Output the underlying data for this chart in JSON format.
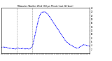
{
  "title": "Milwaukee Weather Wind Chill per Minute (Last 24 Hours)",
  "line_color": "#0000ff",
  "bg_color": "#ffffff",
  "ylim": [
    0,
    24
  ],
  "yticks": [
    2,
    4,
    6,
    8,
    10,
    12,
    14,
    16,
    18,
    20,
    22,
    24
  ],
  "ytick_labels": [
    "2",
    "4",
    "6",
    "8",
    "10",
    "12",
    "14",
    "16",
    "18",
    "20",
    "22",
    "24"
  ],
  "vline_x": [
    0.18,
    0.355
  ],
  "num_points": 144,
  "curve": [
    3.2,
    3.1,
    3.0,
    3.2,
    3.3,
    3.1,
    3.0,
    3.2,
    3.1,
    3.0,
    2.8,
    2.7,
    2.6,
    2.5,
    2.6,
    2.7,
    2.5,
    2.4,
    2.3,
    2.2,
    2.4,
    2.3,
    2.2,
    2.1,
    2.2,
    2.5,
    2.7,
    2.8,
    2.6,
    2.5,
    2.4,
    2.3,
    2.2,
    2.4,
    2.5,
    2.6,
    2.4,
    2.3,
    2.2,
    2.1,
    2.3,
    2.4,
    2.5,
    2.3,
    2.2,
    2.1,
    2.3,
    2.5,
    2.6,
    2.8,
    3.2,
    4.0,
    5.5,
    7.0,
    8.5,
    10.0,
    11.5,
    13.0,
    14.5,
    16.0,
    17.5,
    18.5,
    19.5,
    20.5,
    21.0,
    21.5,
    21.8,
    22.0,
    21.5,
    21.8,
    22.2,
    22.0,
    21.5,
    21.0,
    21.3,
    21.0,
    20.5,
    20.0,
    19.5,
    19.0,
    18.5,
    18.0,
    17.5,
    17.0,
    16.5,
    16.0,
    15.5,
    15.0,
    14.5,
    14.0,
    13.5,
    13.0,
    12.5,
    12.0,
    11.5,
    11.0,
    10.5,
    10.0,
    9.5,
    9.0,
    8.5,
    8.0,
    7.5,
    7.0,
    6.5,
    6.2,
    5.9,
    5.6,
    5.3,
    5.0,
    4.8,
    4.6,
    4.4,
    4.2,
    4.0,
    3.8,
    3.6,
    3.4,
    3.2,
    3.0,
    2.9,
    2.8,
    2.7,
    2.6,
    2.5,
    2.8,
    3.0,
    3.2,
    3.4,
    3.5,
    3.8,
    4.0,
    4.2,
    4.5,
    4.5,
    4.4,
    4.3,
    4.2,
    4.1,
    4.0,
    3.9,
    3.8,
    3.7,
    3.6
  ]
}
